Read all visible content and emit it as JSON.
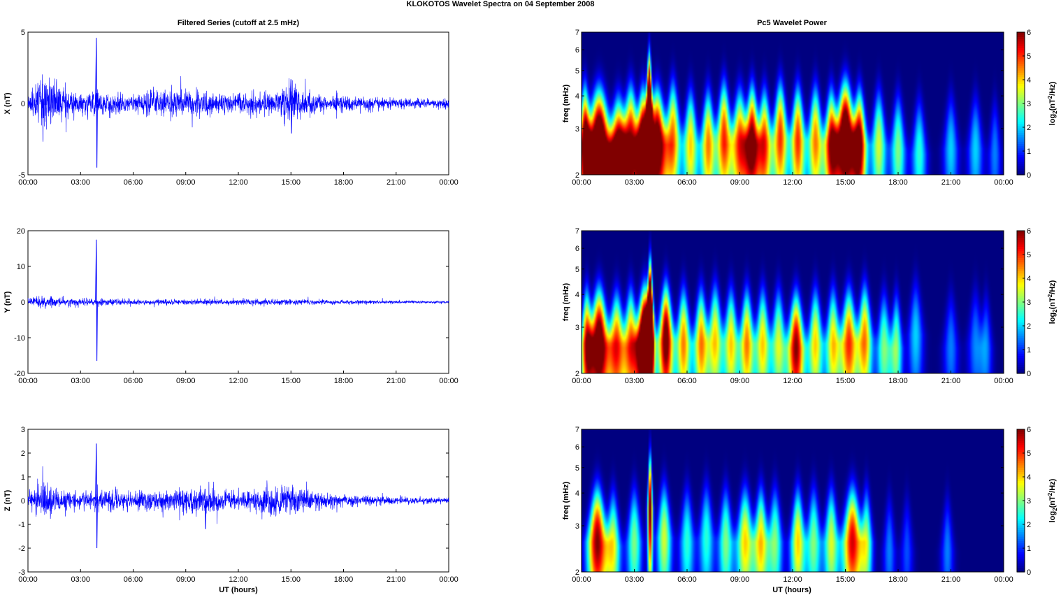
{
  "figure": {
    "title": "KLOKOTOS Wavelet Spectra on 04 September 2008",
    "left_column_title": "Filtered Series (cutoff at 2.5 mHz)",
    "right_column_title": "Pc5 Wavelet Power",
    "xlabel": "UT (hours)",
    "colors": {
      "trace": "#0000ff",
      "axes": "#000000"
    }
  },
  "chart_data": [
    {
      "type": "line",
      "name": "X",
      "ylabel": "X (nT)",
      "xlim": [
        0,
        24
      ],
      "ylim": [
        -5,
        5
      ],
      "y_ticks": [
        "5",
        "0",
        "-5"
      ],
      "x_ticks": [
        "00:00",
        "03:00",
        "06:00",
        "09:00",
        "12:00",
        "15:00",
        "18:00",
        "21:00",
        "00:00"
      ],
      "envelope": {
        "x_hours": [
          0,
          0.5,
          1.0,
          1.5,
          2.0,
          2.5,
          3.0,
          3.5,
          3.9,
          4.5,
          5.0,
          6.0,
          7.0,
          8.0,
          9.0,
          10.0,
          11.0,
          12.0,
          13.0,
          14.0,
          15.0,
          15.5,
          16.0,
          17.0,
          18.0,
          19.0,
          20.0,
          21.0,
          22.0,
          23.0,
          24.0
        ],
        "amplitude_nT": [
          0.5,
          1.0,
          1.9,
          1.5,
          1.0,
          0.8,
          0.6,
          0.7,
          0.7,
          0.8,
          0.6,
          0.6,
          0.9,
          0.7,
          0.8,
          0.8,
          0.6,
          0.6,
          0.6,
          0.5,
          1.3,
          0.9,
          0.7,
          0.5,
          0.5,
          0.4,
          0.4,
          0.3,
          0.3,
          0.25,
          0.3
        ]
      },
      "spikes": [
        {
          "x_hours": 3.9,
          "max_nT": 4.6,
          "min_nT": -4.5
        },
        {
          "x_hours": 15.0,
          "max_nT": 1.7,
          "min_nT": -2.1
        }
      ]
    },
    {
      "type": "line",
      "name": "Y",
      "ylabel": "Y (nT)",
      "xlim": [
        0,
        24
      ],
      "ylim": [
        -20,
        20
      ],
      "y_ticks": [
        "20",
        "10",
        "0",
        "-10",
        "-20"
      ],
      "x_ticks": [
        "00:00",
        "03:00",
        "06:00",
        "09:00",
        "12:00",
        "15:00",
        "18:00",
        "21:00",
        "00:00"
      ],
      "envelope": {
        "x_hours": [
          0,
          1.0,
          2.0,
          3.0,
          3.9,
          5.0,
          6.0,
          9.0,
          12.0,
          15.0,
          18.0,
          21.0,
          24.0
        ],
        "amplitude_nT": [
          0.8,
          1.5,
          1.0,
          0.8,
          0.8,
          0.9,
          0.7,
          0.6,
          0.7,
          0.8,
          0.5,
          0.4,
          0.3
        ]
      },
      "spikes": [
        {
          "x_hours": 3.9,
          "max_nT": 17.5,
          "min_nT": -16.5
        }
      ]
    },
    {
      "type": "line",
      "name": "Z",
      "ylabel": "Z (nT)",
      "xlim": [
        0,
        24
      ],
      "ylim": [
        -3,
        3
      ],
      "y_ticks": [
        "3",
        "2",
        "1",
        "0",
        "-1",
        "-2",
        "-3"
      ],
      "x_ticks": [
        "00:00",
        "03:00",
        "06:00",
        "09:00",
        "12:00",
        "15:00",
        "18:00",
        "21:00",
        "00:00"
      ],
      "envelope": {
        "x_hours": [
          0,
          1.0,
          2.0,
          3.0,
          3.9,
          5.0,
          6.0,
          8.0,
          10.0,
          12.0,
          15.0,
          16.0,
          18.0,
          21.0,
          24.0
        ],
        "amplitude_nT": [
          0.3,
          0.6,
          0.4,
          0.3,
          0.3,
          0.4,
          0.3,
          0.4,
          0.5,
          0.3,
          0.6,
          0.4,
          0.2,
          0.15,
          0.1
        ]
      },
      "spikes": [
        {
          "x_hours": 3.9,
          "max_nT": 2.4,
          "min_nT": -2.0
        },
        {
          "x_hours": 10.1,
          "max_nT": 0.5,
          "min_nT": -1.2
        }
      ]
    },
    {
      "type": "heatmap",
      "component": "X",
      "ylabel": "freq (mHz)",
      "y_scale": "log",
      "ylim": [
        2,
        7
      ],
      "xlim": [
        0,
        24
      ],
      "y_ticks": [
        "7",
        "6",
        "5",
        "4",
        "3",
        "2"
      ],
      "x_ticks": [
        "00:00",
        "03:00",
        "06:00",
        "09:00",
        "12:00",
        "15:00",
        "18:00",
        "21:00",
        "00:00"
      ],
      "colorbar": {
        "label": "log2(nT²/Hz)",
        "range": [
          0,
          6
        ],
        "ticks": [
          "6",
          "5",
          "4",
          "3",
          "2",
          "1",
          "0"
        ]
      },
      "blobs": [
        [
          0.2,
          2.7,
          0.25,
          6.0
        ],
        [
          1.0,
          2.6,
          0.5,
          8.0
        ],
        [
          2.1,
          2.4,
          0.4,
          6.5
        ],
        [
          2.8,
          2.7,
          0.35,
          5.5
        ],
        [
          3.5,
          2.6,
          0.3,
          7.0
        ],
        [
          3.85,
          3.5,
          0.12,
          10.0
        ],
        [
          4.3,
          2.6,
          0.4,
          7.0
        ],
        [
          5.2,
          2.8,
          0.3,
          4.5
        ],
        [
          6.2,
          2.6,
          0.3,
          4.0
        ],
        [
          7.2,
          2.6,
          0.3,
          4.5
        ],
        [
          8.1,
          2.8,
          0.3,
          5.0
        ],
        [
          9.0,
          2.6,
          0.35,
          5.0
        ],
        [
          9.7,
          2.7,
          0.3,
          6.0
        ],
        [
          10.4,
          2.6,
          0.3,
          5.0
        ],
        [
          11.3,
          2.8,
          0.3,
          5.0
        ],
        [
          12.3,
          2.7,
          0.3,
          5.0
        ],
        [
          13.3,
          2.7,
          0.3,
          4.5
        ],
        [
          14.2,
          2.6,
          0.3,
          5.5
        ],
        [
          15.0,
          2.8,
          0.4,
          7.5
        ],
        [
          15.8,
          2.6,
          0.3,
          6.0
        ],
        [
          16.9,
          2.6,
          0.3,
          3.5
        ],
        [
          18.0,
          2.5,
          0.3,
          3.0
        ],
        [
          19.2,
          2.4,
          0.3,
          2.5
        ],
        [
          21.0,
          2.5,
          0.3,
          2.0
        ],
        [
          22.4,
          2.5,
          0.3,
          2.0
        ],
        [
          23.5,
          2.4,
          0.25,
          1.5
        ]
      ]
    },
    {
      "type": "heatmap",
      "component": "Y",
      "ylabel": "freq (mHz)",
      "y_scale": "log",
      "ylim": [
        2,
        7
      ],
      "xlim": [
        0,
        24
      ],
      "y_ticks": [
        "7",
        "6",
        "5",
        "4",
        "3",
        "2"
      ],
      "x_ticks": [
        "00:00",
        "03:00",
        "06:00",
        "09:00",
        "12:00",
        "15:00",
        "18:00",
        "21:00",
        "00:00"
      ],
      "colorbar": {
        "label": "log2(nT²/Hz)",
        "range": [
          0,
          6
        ],
        "ticks": [
          "6",
          "5",
          "4",
          "3",
          "2",
          "1",
          "0"
        ]
      },
      "blobs": [
        [
          0.3,
          2.6,
          0.25,
          5.0
        ],
        [
          1.0,
          2.6,
          0.4,
          7.0
        ],
        [
          2.0,
          2.5,
          0.35,
          5.0
        ],
        [
          2.8,
          2.6,
          0.3,
          4.5
        ],
        [
          3.6,
          2.6,
          0.35,
          9.0
        ],
        [
          3.9,
          3.3,
          0.12,
          10.0
        ],
        [
          4.8,
          2.7,
          0.3,
          6.5
        ],
        [
          5.8,
          2.6,
          0.3,
          4.5
        ],
        [
          6.8,
          2.6,
          0.3,
          4.5
        ],
        [
          7.6,
          2.7,
          0.3,
          4.0
        ],
        [
          8.5,
          2.6,
          0.3,
          4.0
        ],
        [
          9.4,
          2.6,
          0.3,
          4.5
        ],
        [
          10.3,
          2.6,
          0.3,
          4.0
        ],
        [
          11.2,
          2.6,
          0.3,
          3.5
        ],
        [
          12.2,
          2.5,
          0.35,
          6.0
        ],
        [
          13.3,
          2.6,
          0.3,
          4.0
        ],
        [
          14.3,
          2.6,
          0.3,
          4.0
        ],
        [
          15.2,
          2.6,
          0.35,
          5.0
        ],
        [
          16.1,
          2.7,
          0.3,
          4.5
        ],
        [
          17.2,
          2.5,
          0.3,
          3.0
        ],
        [
          17.9,
          2.5,
          0.25,
          3.0
        ],
        [
          19.0,
          2.8,
          0.3,
          2.0
        ],
        [
          21.0,
          2.5,
          0.3,
          1.5
        ],
        [
          22.4,
          2.6,
          0.3,
          1.5
        ],
        [
          23.0,
          2.5,
          0.25,
          1.5
        ]
      ]
    },
    {
      "type": "heatmap",
      "component": "Z",
      "ylabel": "freq (mHz)",
      "y_scale": "log",
      "ylim": [
        2,
        7
      ],
      "xlim": [
        0,
        24
      ],
      "y_ticks": [
        "7",
        "6",
        "5",
        "4",
        "3",
        "2"
      ],
      "x_ticks": [
        "00:00",
        "03:00",
        "06:00",
        "09:00",
        "12:00",
        "15:00",
        "18:00",
        "21:00",
        "00:00"
      ],
      "colorbar": {
        "label": "log2(nT²/Hz)",
        "range": [
          0,
          6
        ],
        "ticks": [
          "6",
          "5",
          "4",
          "3",
          "2",
          "1",
          "0"
        ]
      },
      "blobs": [
        [
          0.9,
          2.6,
          0.4,
          6.0
        ],
        [
          1.8,
          2.5,
          0.3,
          3.5
        ],
        [
          3.0,
          2.6,
          0.3,
          3.0
        ],
        [
          3.9,
          3.5,
          0.1,
          6.5
        ],
        [
          4.7,
          2.7,
          0.3,
          3.5
        ],
        [
          6.0,
          2.6,
          0.3,
          2.5
        ],
        [
          7.1,
          2.7,
          0.3,
          2.5
        ],
        [
          8.2,
          2.6,
          0.3,
          3.0
        ],
        [
          9.3,
          2.6,
          0.35,
          4.0
        ],
        [
          10.2,
          2.6,
          0.3,
          4.0
        ],
        [
          11.0,
          2.6,
          0.3,
          3.0
        ],
        [
          12.3,
          2.6,
          0.3,
          4.0
        ],
        [
          13.2,
          2.6,
          0.3,
          3.0
        ],
        [
          14.2,
          2.6,
          0.3,
          3.5
        ],
        [
          15.4,
          2.6,
          0.4,
          5.5
        ],
        [
          16.2,
          2.6,
          0.25,
          3.0
        ],
        [
          17.5,
          2.4,
          0.25,
          1.5
        ],
        [
          18.5,
          2.4,
          0.25,
          1.2
        ],
        [
          20.8,
          2.4,
          0.25,
          1.5
        ]
      ]
    }
  ]
}
